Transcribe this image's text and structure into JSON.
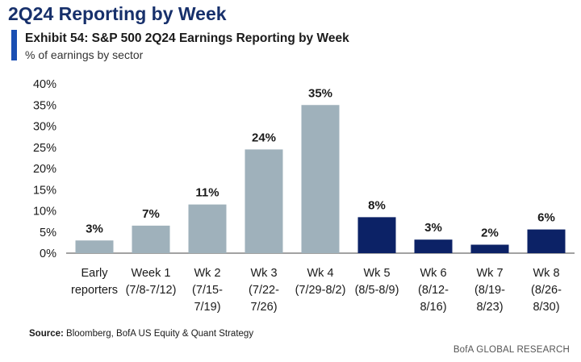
{
  "header": {
    "page_title": "2Q24 Reporting by Week",
    "exhibit_title": "Exhibit 54: S&P 500 2Q24 Earnings Reporting by Week",
    "exhibit_subtitle": "% of earnings by sector"
  },
  "colors": {
    "past_bar": "#9fb1bb",
    "future_bar": "#0c2266",
    "accent": "#1a4fb3"
  },
  "chart_data": {
    "type": "bar",
    "title": "Exhibit 54: S&P 500 2Q24 Earnings Reporting by Week",
    "subtitle": "% of earnings by sector",
    "xlabel": "",
    "ylabel": "",
    "ylim": [
      0,
      40
    ],
    "yticks": [
      "0%",
      "5%",
      "10%",
      "15%",
      "20%",
      "25%",
      "30%",
      "35%",
      "40%"
    ],
    "categories": [
      [
        "Early",
        "reporters"
      ],
      [
        "Week 1",
        "(7/8-7/12)"
      ],
      [
        "Wk 2",
        "(7/15-",
        "7/19)"
      ],
      [
        "Wk 3",
        "(7/22-",
        "7/26)"
      ],
      [
        "Wk 4",
        "(7/29-8/2)"
      ],
      [
        "Wk 5",
        "(8/5-8/9)"
      ],
      [
        "Wk 6",
        "(8/12-",
        "8/16)"
      ],
      [
        "Wk 7",
        "(8/19-",
        "8/23)"
      ],
      [
        "Wk 8",
        "(8/26-",
        "8/30)"
      ]
    ],
    "values": [
      3,
      6.5,
      11.5,
      24.5,
      35,
      8.5,
      3.2,
      2,
      5.6
    ],
    "data_labels": [
      "3%",
      "7%",
      "11%",
      "24%",
      "35%",
      "8%",
      "3%",
      "2%",
      "6%"
    ],
    "bar_status": [
      "reported",
      "reported",
      "reported",
      "reported",
      "reported",
      "upcoming",
      "upcoming",
      "upcoming",
      "upcoming"
    ],
    "grid": false
  },
  "footer": {
    "source_label": "Source:",
    "source_text": "Bloomberg, BofA US Equity & Quant Strategy",
    "brand": "BofA GLOBAL RESEARCH"
  }
}
